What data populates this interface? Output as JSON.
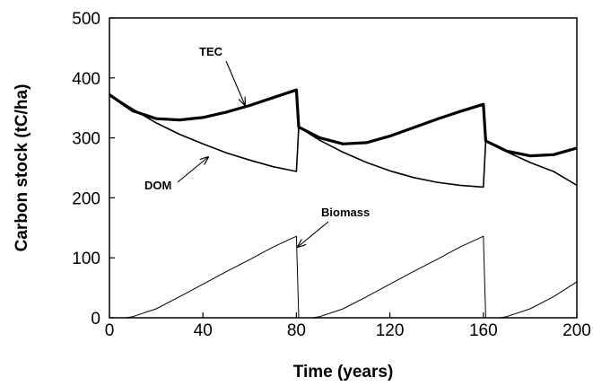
{
  "chart_data": {
    "type": "line",
    "xlabel": "Time (years)",
    "ylabel": "Carbon stock (tC/ha)",
    "xlim": [
      0,
      200
    ],
    "ylim": [
      0,
      500
    ],
    "xticks": [
      0,
      40,
      80,
      120,
      160,
      200
    ],
    "yticks": [
      0,
      100,
      200,
      300,
      400,
      500
    ],
    "grid": false,
    "series": [
      {
        "name": "TEC",
        "x": [
          0,
          10,
          20,
          30,
          40,
          50,
          60,
          70,
          80,
          81,
          90,
          100,
          110,
          120,
          130,
          140,
          150,
          160,
          161,
          170,
          180,
          190,
          200
        ],
        "y": [
          372,
          345,
          332,
          330,
          334,
          343,
          354,
          367,
          380,
          318,
          300,
          290,
          292,
          303,
          317,
          331,
          344,
          356,
          295,
          278,
          270,
          272,
          283
        ]
      },
      {
        "name": "DOM",
        "x": [
          0,
          10,
          20,
          30,
          40,
          50,
          60,
          70,
          80,
          81,
          90,
          100,
          110,
          120,
          130,
          140,
          150,
          160,
          161,
          170,
          180,
          190,
          200
        ],
        "y": [
          372,
          348,
          325,
          306,
          290,
          275,
          263,
          252,
          244,
          318,
          296,
          276,
          259,
          245,
          234,
          226,
          221,
          218,
          295,
          277,
          259,
          244,
          221
        ]
      },
      {
        "name": "Biomass",
        "x": [
          0,
          7,
          10,
          20,
          30,
          40,
          50,
          60,
          70,
          80,
          81,
          82,
          87,
          90,
          100,
          110,
          120,
          130,
          140,
          150,
          160,
          161,
          162,
          167,
          170,
          180,
          190,
          200
        ],
        "y": [
          0,
          0,
          2,
          15,
          35,
          56,
          77,
          97,
          118,
          136,
          0,
          0,
          0,
          2,
          15,
          35,
          56,
          77,
          97,
          118,
          136,
          0,
          0,
          0,
          2,
          15,
          35,
          60
        ]
      }
    ],
    "annotations": [
      {
        "text": "TEC",
        "target_series": "TEC"
      },
      {
        "text": "DOM",
        "target_series": "DOM"
      },
      {
        "text": "Biomass",
        "target_series": "Biomass"
      }
    ]
  }
}
